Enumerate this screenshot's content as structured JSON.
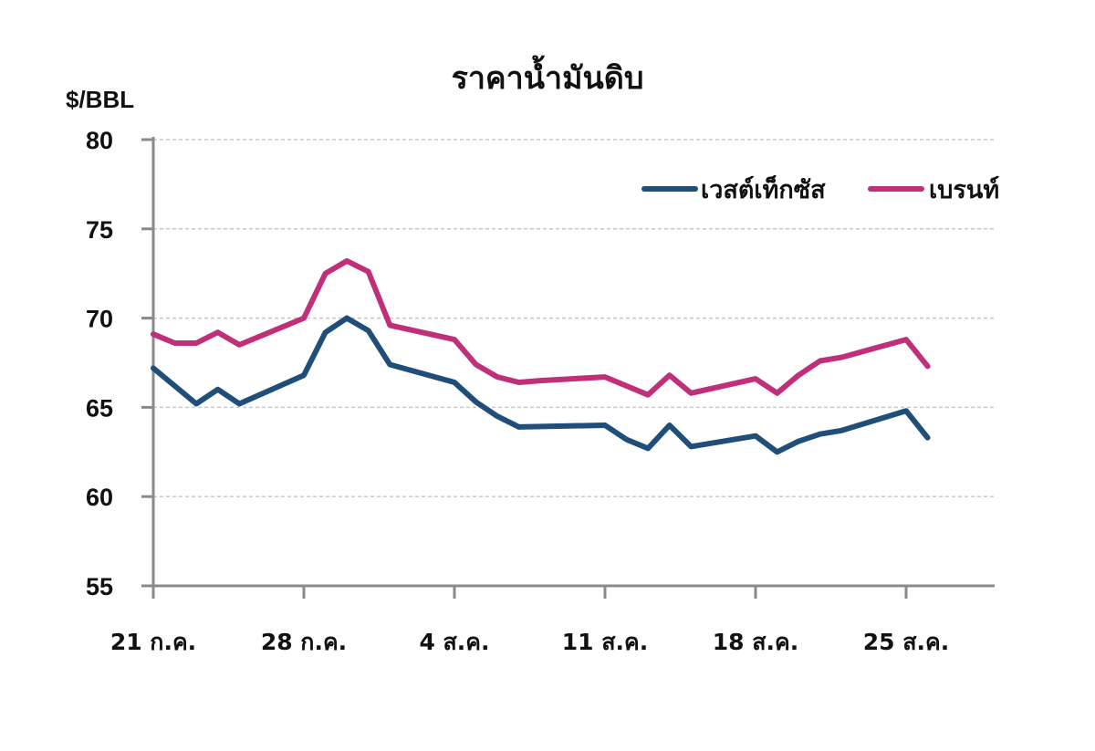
{
  "chart_data": {
    "type": "line",
    "title": "ราคาน้ำมันดิบ",
    "ylabel": "$/BBL",
    "xlabel": "",
    "ylim": [
      55,
      80
    ],
    "yticks": [
      80,
      75,
      70,
      65,
      60,
      55
    ],
    "grid": true,
    "legend_position": "top-right",
    "xtick_labels": [
      "21 ก.ค.",
      "28 ก.ค.",
      "4 ส.ค.",
      "11 ส.ค.",
      "18 ส.ค.",
      "25 ส.ค."
    ],
    "series": [
      {
        "name": "เวสต์เท็กซัส",
        "color": "#1F4E79",
        "points": [
          {
            "day": 0,
            "value": 67.2
          },
          {
            "day": 2,
            "value": 65.2
          },
          {
            "day": 3,
            "value": 66.0
          },
          {
            "day": 4,
            "value": 65.2
          },
          {
            "day": 7,
            "value": 66.8
          },
          {
            "day": 8,
            "value": 69.2
          },
          {
            "day": 9,
            "value": 70.0
          },
          {
            "day": 10,
            "value": 69.3
          },
          {
            "day": 11,
            "value": 67.4
          },
          {
            "day": 14,
            "value": 66.4
          },
          {
            "day": 15,
            "value": 65.3
          },
          {
            "day": 16,
            "value": 64.5
          },
          {
            "day": 17,
            "value": 63.9
          },
          {
            "day": 21,
            "value": 64.0
          },
          {
            "day": 22,
            "value": 63.2
          },
          {
            "day": 23,
            "value": 62.7
          },
          {
            "day": 24,
            "value": 64.0
          },
          {
            "day": 25,
            "value": 62.8
          },
          {
            "day": 28,
            "value": 63.4
          },
          {
            "day": 29,
            "value": 62.5
          },
          {
            "day": 30,
            "value": 63.1
          },
          {
            "day": 31,
            "value": 63.5
          },
          {
            "day": 32,
            "value": 63.7
          },
          {
            "day": 35,
            "value": 64.8
          },
          {
            "day": 36,
            "value": 63.3
          }
        ]
      },
      {
        "name": "เบรนท์",
        "color": "#C0307A",
        "points": [
          {
            "day": 0,
            "value": 69.1
          },
          {
            "day": 1,
            "value": 68.6
          },
          {
            "day": 2,
            "value": 68.6
          },
          {
            "day": 3,
            "value": 69.2
          },
          {
            "day": 4,
            "value": 68.5
          },
          {
            "day": 7,
            "value": 70.0
          },
          {
            "day": 8,
            "value": 72.5
          },
          {
            "day": 9,
            "value": 73.2
          },
          {
            "day": 10,
            "value": 72.6
          },
          {
            "day": 11,
            "value": 69.6
          },
          {
            "day": 14,
            "value": 68.8
          },
          {
            "day": 15,
            "value": 67.4
          },
          {
            "day": 16,
            "value": 66.7
          },
          {
            "day": 17,
            "value": 66.4
          },
          {
            "day": 18,
            "value": 66.5
          },
          {
            "day": 21,
            "value": 66.7
          },
          {
            "day": 23,
            "value": 65.7
          },
          {
            "day": 24,
            "value": 66.8
          },
          {
            "day": 25,
            "value": 65.8
          },
          {
            "day": 28,
            "value": 66.6
          },
          {
            "day": 29,
            "value": 65.8
          },
          {
            "day": 30,
            "value": 66.8
          },
          {
            "day": 31,
            "value": 67.6
          },
          {
            "day": 32,
            "value": 67.8
          },
          {
            "day": 35,
            "value": 68.8
          },
          {
            "day": 36,
            "value": 67.3
          }
        ]
      }
    ]
  }
}
